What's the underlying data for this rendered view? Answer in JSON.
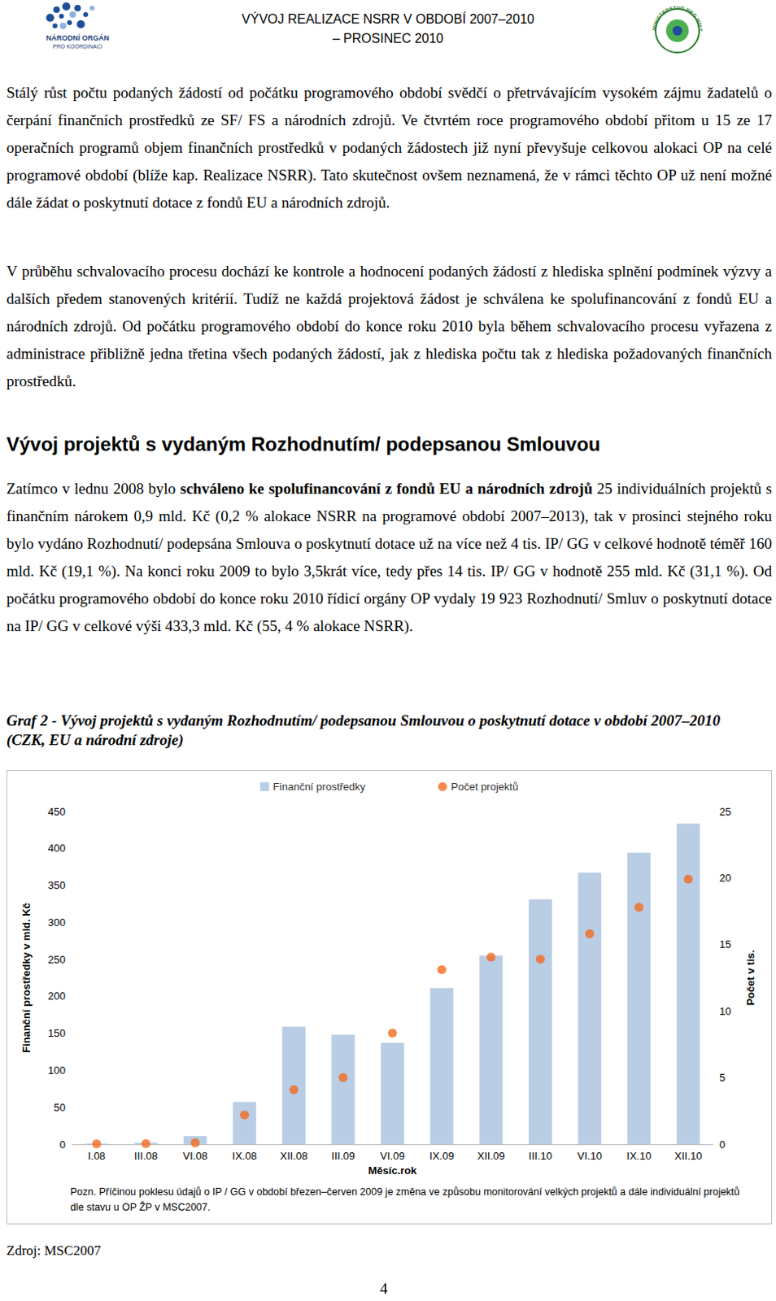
{
  "header": {
    "title": "VÝVOJ REALIZACE NSRR V OBDOBÍ 2007–2010",
    "subtitle": "– PROSINEC 2010",
    "logo_left": [
      "NÁRODNÍ ORGÁN",
      "PRO KOORDINACI"
    ],
    "logo_right": "MINISTERSTVO PRO MÍSTNÍ ROZVOJ"
  },
  "paragraphs_before": [
    [
      {
        "text": "Stálý růst počtu podaných žádostí od počátku programového období svědčí o přetrvávajícím vysokém zájmu žadatelů o čerpání finančních prostředků ze SF/ FS a národních zdrojů. Ve čtvrtém roce programového období přitom u 15 ze 17 operačních programů objem finančních prostředků v podaných žádostech již nyní převyšuje celkovou alokaci OP na celé programové období (blíže kap. Realizace NSRR). Tato skutečnost ovšem neznamená, že v rámci těchto OP už není možné dále žádat o poskytnutí dotace z fondů EU a národních zdrojů.",
        "bold": false
      }
    ],
    [
      {
        "text": "V průběhu schvalovacího procesu dochází ke kontrole a hodnocení podaných žádostí z hlediska splnění podmínek výzvy a dalších předem stanovených kritérií. Tudíž ne každá projektová žádost je schválena ke spolufinancování z fondů EU a národních zdrojů. Od počátku programového období do konce roku 2010 byla během schvalovacího procesu vyřazena z administrace přibližně jedna třetina všech podaných žádostí, jak z hlediska počtu tak z hlediska požadovaných finančních prostředků.",
        "bold": false
      }
    ]
  ],
  "heading": "Vývoj projektů s vydaným Rozhodnutím/ podepsanou Smlouvou",
  "paragraphs_after": [
    [
      {
        "text": "Zatímco v lednu 2008 bylo ",
        "bold": false
      },
      {
        "text": "schváleno ke spolufinancování z fondů EU a národních zdrojů",
        "bold": true
      },
      {
        "text": " 25 individuálních projektů s finančním nárokem 0,9 mld. Kč (0,2 % alokace NSRR na programové období 2007–2013), tak v prosinci stejného roku bylo vydáno Rozhodnutí/ podepsána Smlouva o poskytnutí dotace už na více než 4 tis. IP/ GG v celkové hodnotě téměř 160 mld. Kč (19,1 %). Na konci roku 2009 to bylo 3,5krát více, tedy přes 14 tis. IP/ GG v hodnotě 255 mld. Kč (31,1 %). Od počátku programového období do konce roku 2010 řídicí orgány OP vydaly 19 923 Rozhodnutí/ Smluv o poskytnutí dotace na IP/ GG v celkové výši 433,3 mld. Kč (55, 4 % alokace NSRR).",
        "bold": false
      }
    ]
  ],
  "chart_caption": "Graf 2 - Vývoj projektů s vydaným Rozhodnutím/ podepsanou Smlouvou o poskytnutí dotace v období 2007–2010 (CZK, EU a národní zdroje)",
  "chart_data": {
    "type": "bar",
    "categories": [
      "I.08",
      "III.08",
      "VI.08",
      "IX.08",
      "XII.08",
      "III.09",
      "VI.09",
      "IX.09",
      "XII.09",
      "III.10",
      "VI.10",
      "IX.10",
      "XII.10"
    ],
    "series": [
      {
        "name": "Finanční prostředky",
        "type": "bar",
        "color": "#b9cde5",
        "values": [
          0.9,
          2,
          11,
          57,
          159,
          148,
          137,
          211,
          255,
          331,
          367,
          394,
          433.3
        ]
      },
      {
        "name": "Počet projektů",
        "type": "scatter",
        "axis": "y2",
        "color": "#f36c21",
        "marker": "circle",
        "values": [
          0.025,
          0.05,
          0.1,
          2.2,
          4.1,
          5.0,
          8.35,
          13.1,
          14.05,
          13.9,
          15.8,
          17.8,
          19.9
        ]
      }
    ],
    "x_label": "Měsíc.rok",
    "y_label": "Finanční prostředky v mld. Kč",
    "y2_label": "Počet v tis.",
    "ylim": [
      0,
      450
    ],
    "yticks": [
      0,
      50,
      100,
      150,
      200,
      250,
      300,
      350,
      400,
      450
    ],
    "y2lim": [
      0,
      25
    ],
    "y2ticks": [
      0,
      5,
      10,
      15,
      20,
      25
    ],
    "grid": false,
    "legend": "top"
  },
  "chart_note": "Pozn. Příčinou poklesu údajů o IP / GG v období březen–červen 2009 je změna ve způsobu monitorování velkých projektů a dále individuální projektů dle stavu u OP ŽP v MSC2007.",
  "source": "Zdroj: MSC2007",
  "page_number": "4"
}
